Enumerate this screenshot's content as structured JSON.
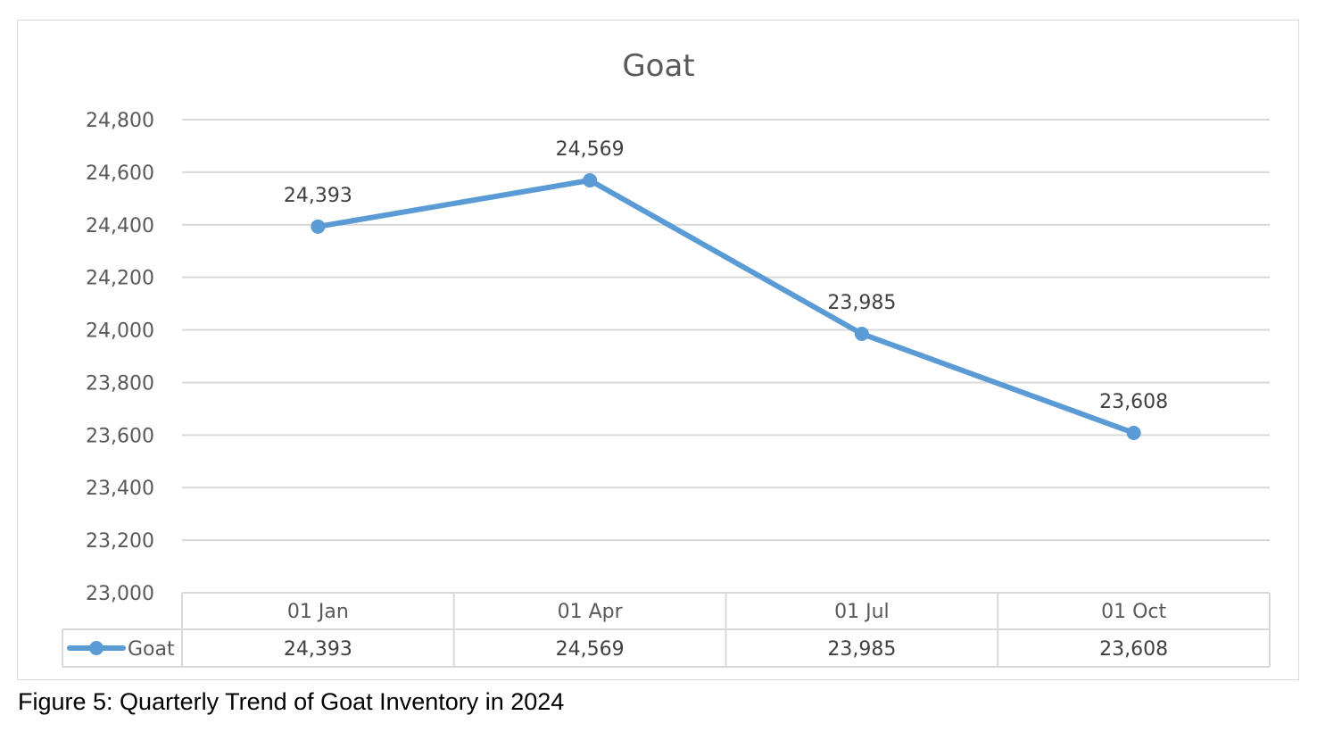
{
  "chart_data": {
    "type": "line",
    "title": "Goat",
    "categories": [
      "01 Jan",
      "01 Apr",
      "01 Jul",
      "01 Oct"
    ],
    "series": [
      {
        "name": "Goat",
        "values": [
          24393,
          24569,
          23985,
          23608
        ],
        "color": "#5b9bd5"
      }
    ],
    "value_labels": [
      "24,393",
      "24,569",
      "23,985",
      "23,608"
    ],
    "y_ticks": [
      "24,800",
      "24,600",
      "24,400",
      "24,200",
      "24,000",
      "23,800",
      "23,600",
      "23,400",
      "23,200",
      "23,000"
    ],
    "ylim": [
      23000,
      24800
    ],
    "xlabel": "",
    "ylabel": "",
    "grid": true,
    "legend": "data-table",
    "data_table": true
  },
  "caption": "Figure 5: Quarterly Trend of Goat Inventory in 2024"
}
